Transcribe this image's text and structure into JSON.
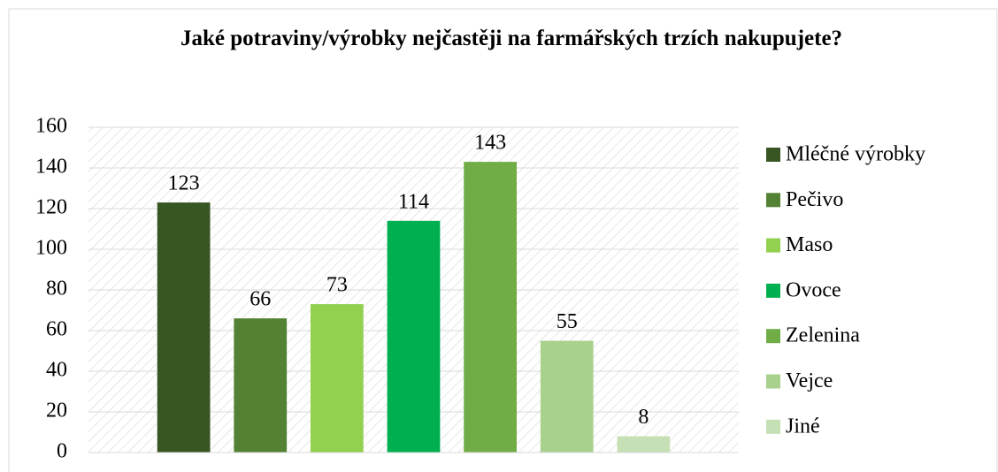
{
  "chart_data": {
    "type": "bar",
    "title": "Jaké potraviny/výrobky nejčastěji na farmářských trzích nakupujete?",
    "categories": [
      null
    ],
    "series": [
      {
        "name": "Mléčné výrobky",
        "color": "#375623",
        "values": [
          123
        ]
      },
      {
        "name": "Pečivo",
        "color": "#548235",
        "values": [
          66
        ]
      },
      {
        "name": "Maso",
        "color": "#92d050",
        "values": [
          73
        ]
      },
      {
        "name": "Ovoce",
        "color": "#00b050",
        "values": [
          114
        ]
      },
      {
        "name": "Zelenina",
        "color": "#70ad47",
        "values": [
          143
        ]
      },
      {
        "name": "Vejce",
        "color": "#a9d18e",
        "values": [
          55
        ]
      },
      {
        "name": "Jiné",
        "color": "#c5e0b4",
        "values": [
          8
        ]
      }
    ],
    "ylim": [
      0,
      160
    ],
    "yticks": [
      0,
      20,
      40,
      60,
      80,
      100,
      120,
      140,
      160
    ],
    "grid": true,
    "legend": "right"
  }
}
